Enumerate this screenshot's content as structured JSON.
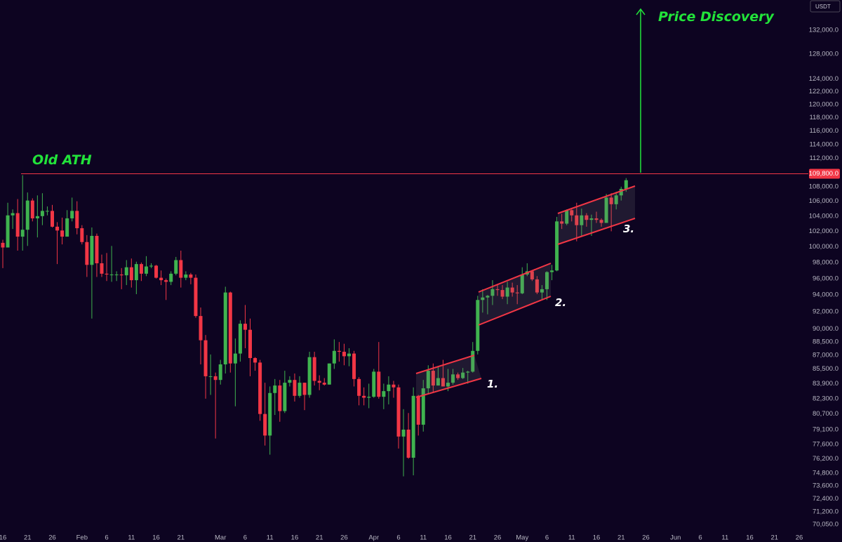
{
  "chart_data": {
    "type": "candlestick",
    "currency": "USDT",
    "annotations": {
      "old_ath": "Old ATH",
      "price_discovery": "Price Discovery",
      "channels": [
        "1.",
        "2.",
        "3."
      ]
    },
    "level": {
      "value": 109800,
      "label": "109,800.0"
    },
    "log": true,
    "grid": false,
    "up_color": "#3fb34f",
    "down_color": "#f23645",
    "ylim": [
      69480,
      137200
    ],
    "yticks": [
      {
        "value": 132000,
        "label": "132,000.0"
      },
      {
        "value": 128000,
        "label": "128,000.0"
      },
      {
        "value": 124000,
        "label": "124,000.0"
      },
      {
        "value": 122000,
        "label": "122,000.0"
      },
      {
        "value": 120000,
        "label": "120,000.0"
      },
      {
        "value": 118000,
        "label": "118,000.0"
      },
      {
        "value": 116000,
        "label": "116,000.0"
      },
      {
        "value": 114000,
        "label": "114,000.0"
      },
      {
        "value": 112000,
        "label": "112,000.0"
      },
      {
        "value": 108000,
        "label": "108,000.0"
      },
      {
        "value": 106000,
        "label": "106,000.0"
      },
      {
        "value": 104000,
        "label": "104,000.0"
      },
      {
        "value": 102000,
        "label": "102,000.0"
      },
      {
        "value": 100000,
        "label": "100,000.0"
      },
      {
        "value": 98000,
        "label": "98,000.0"
      },
      {
        "value": 96000,
        "label": "96,000.0"
      },
      {
        "value": 94000,
        "label": "94,000.0"
      },
      {
        "value": 92000,
        "label": "92,000.0"
      },
      {
        "value": 90000,
        "label": "90,000.0"
      },
      {
        "value": 88500,
        "label": "88,500.0"
      },
      {
        "value": 87000,
        "label": "87,000.0"
      },
      {
        "value": 85500,
        "label": "85,500.0"
      },
      {
        "value": 83900,
        "label": "83,900.0"
      },
      {
        "value": 82300,
        "label": "82,300.0"
      },
      {
        "value": 80700,
        "label": "80,700.0"
      },
      {
        "value": 79100,
        "label": "79,100.0"
      },
      {
        "value": 77600,
        "label": "77,600.0"
      },
      {
        "value": 76200,
        "label": "76,200.0"
      },
      {
        "value": 74800,
        "label": "74,800.0"
      },
      {
        "value": 73600,
        "label": "73,600.0"
      },
      {
        "value": 72400,
        "label": "72,400.0"
      },
      {
        "value": 71200,
        "label": "71,200.0"
      },
      {
        "value": 70050,
        "label": "70,050.0"
      }
    ],
    "categories": [
      "16",
      null,
      null,
      null,
      null,
      "21",
      null,
      null,
      null,
      null,
      "26",
      null,
      null,
      null,
      null,
      null,
      "Feb",
      null,
      null,
      null,
      null,
      "6",
      null,
      null,
      null,
      null,
      "11",
      null,
      null,
      null,
      null,
      "16",
      null,
      null,
      null,
      null,
      "21",
      null,
      null,
      null,
      null,
      null,
      null,
      null,
      "Mar",
      null,
      null,
      null,
      null,
      "6",
      null,
      null,
      null,
      null,
      "11",
      null,
      null,
      null,
      null,
      "16",
      null,
      null,
      null,
      null,
      "21",
      null,
      null,
      null,
      null,
      "26",
      null,
      null,
      null,
      null,
      null,
      "Apr",
      null,
      null,
      null,
      null,
      "6",
      null,
      null,
      null,
      null,
      "11",
      null,
      null,
      null,
      null,
      "16",
      null,
      null,
      null,
      null,
      "21",
      null,
      null,
      null,
      null,
      "26",
      null,
      null,
      null,
      null,
      "May",
      null,
      null,
      null,
      null,
      "6",
      null,
      null,
      null,
      null,
      "11",
      null,
      null,
      null,
      null,
      "16",
      null,
      null,
      null,
      null,
      "21",
      null,
      null,
      null,
      null,
      "26",
      null,
      null,
      null,
      null,
      null,
      "Jun",
      null,
      null,
      null,
      null,
      "6",
      null,
      null,
      null,
      null,
      "11",
      null,
      null,
      null,
      null,
      "16",
      null,
      null,
      null,
      null,
      "21",
      null,
      null,
      null,
      null,
      "26"
    ],
    "open": [
      100500,
      99900,
      104100,
      104400,
      101300,
      102200,
      106100,
      103700,
      104000,
      104700,
      104700,
      102600,
      102100,
      101300,
      103700,
      104700,
      102400,
      100600,
      97700,
      101400,
      97900,
      96600,
      96500,
      96500,
      96500,
      96400,
      97400,
      95800,
      97800,
      96600,
      97500,
      97600,
      96100,
      95800,
      95600,
      96600,
      98300,
      96100,
      96500,
      96100,
      91500,
      88700,
      84700,
      84700,
      84300,
      86000,
      94300,
      86100,
      87200,
      90600,
      89900,
      86700,
      86200,
      80700,
      78500,
      82900,
      83700,
      81000,
      84000,
      84300,
      82600,
      84000,
      82700,
      86800,
      84200,
      84000,
      83800,
      86100,
      87500,
      87400,
      86900,
      87200,
      84400,
      82600,
      82400,
      82500,
      85200,
      82500,
      83100,
      83800,
      83500,
      78400,
      79100,
      76300,
      82600,
      79600,
      83400,
      85300,
      83700,
      84500,
      83600,
      84000,
      84900,
      84500,
      85100,
      85200,
      87500,
      93400,
      93700,
      93900,
      94700,
      94600,
      93800,
      94900,
      94300,
      94200,
      96500,
      96900,
      95900,
      94300,
      94700,
      96800,
      97000,
      103300,
      103000,
      104800,
      104100,
      102800,
      104100,
      103500,
      103700,
      103500,
      103100,
      106500,
      105600,
      106800,
      107700,
      null,
      null,
      null,
      null,
      null,
      null,
      null,
      null,
      null,
      null,
      null,
      null,
      null,
      null,
      null,
      null,
      null,
      null,
      null,
      null,
      null,
      null,
      null,
      null,
      null,
      null,
      null,
      null,
      null,
      null,
      null,
      null,
      null,
      null,
      null
    ],
    "high": [
      100900,
      105800,
      104900,
      106300,
      109600,
      107200,
      106400,
      106800,
      107100,
      105300,
      105500,
      103200,
      103800,
      104800,
      106500,
      106000,
      102800,
      101500,
      102500,
      101700,
      99000,
      99200,
      100100,
      96900,
      97300,
      98300,
      98500,
      98100,
      98000,
      98800,
      97900,
      97700,
      97000,
      96000,
      96900,
      98700,
      99500,
      96900,
      96700,
      96500,
      92500,
      89300,
      87100,
      85100,
      86500,
      95000,
      94400,
      88900,
      91000,
      92800,
      91200,
      86800,
      86500,
      84000,
      83600,
      84400,
      84300,
      85300,
      84700,
      85000,
      84700,
      84000,
      87400,
      87400,
      84800,
      84500,
      86100,
      88800,
      88500,
      88300,
      87800,
      87500,
      84600,
      83500,
      83900,
      85500,
      88500,
      83900,
      84700,
      84200,
      83800,
      81200,
      80800,
      83500,
      82700,
      84300,
      85900,
      86100,
      85800,
      86500,
      85500,
      85500,
      85100,
      85600,
      85300,
      88500,
      93900,
      94700,
      94000,
      95800,
      95300,
      95200,
      95600,
      95500,
      95200,
      97400,
      97900,
      96900,
      96300,
      95200,
      96900,
      97700,
      103900,
      104300,
      104900,
      104900,
      105800,
      105000,
      104400,
      104200,
      104600,
      103700,
      107000,
      107100,
      107300,
      108000,
      109200,
      null,
      null,
      null,
      null,
      null,
      null,
      null,
      null,
      null,
      null,
      null,
      null,
      null,
      null,
      null,
      null,
      null,
      null,
      null,
      null,
      null,
      null,
      null,
      null,
      null,
      null,
      null,
      null,
      null,
      null,
      null,
      null,
      null,
      null,
      null
    ],
    "low": [
      97300,
      99900,
      102300,
      99500,
      99500,
      100100,
      103300,
      101200,
      102800,
      104100,
      102500,
      97800,
      100300,
      101300,
      103300,
      101600,
      100300,
      96200,
      91200,
      96200,
      96200,
      95700,
      95600,
      95700,
      94700,
      95200,
      94900,
      94100,
      95700,
      96300,
      97300,
      96000,
      95200,
      93400,
      95200,
      96400,
      94900,
      95800,
      95300,
      91300,
      86000,
      82300,
      82700,
      78200,
      83800,
      85000,
      85100,
      81500,
      86300,
      87800,
      84700,
      85300,
      80000,
      77500,
      76600,
      80600,
      79900,
      80800,
      83600,
      82000,
      82400,
      81100,
      82400,
      83700,
      83200,
      83700,
      83800,
      85500,
      86300,
      85900,
      85800,
      83600,
      81600,
      81600,
      81300,
      82400,
      82300,
      81200,
      81700,
      82400,
      77200,
      74500,
      76200,
      74600,
      78500,
      78900,
      82800,
      83000,
      83700,
      83600,
      83100,
      83800,
      84300,
      84400,
      83900,
      85100,
      87100,
      91900,
      91700,
      92800,
      93900,
      93500,
      92900,
      93800,
      92900,
      94100,
      96300,
      95700,
      94100,
      93500,
      93400,
      95800,
      96900,
      102300,
      102800,
      103300,
      100700,
      101400,
      102600,
      101400,
      103100,
      102600,
      103100,
      102000,
      104900,
      106100,
      107300,
      null,
      null,
      null,
      null,
      null,
      null,
      null,
      null,
      null,
      null,
      null,
      null,
      null,
      null,
      null,
      null,
      null,
      null,
      null,
      null,
      null,
      null,
      null,
      null,
      null,
      null,
      null,
      null,
      null,
      null,
      null,
      null,
      null,
      null,
      null
    ],
    "close": [
      99900,
      104100,
      104400,
      101300,
      102200,
      106100,
      103700,
      104000,
      104700,
      104700,
      102600,
      102100,
      101300,
      103700,
      104700,
      102400,
      100600,
      97700,
      101400,
      97900,
      96600,
      96500,
      96500,
      96500,
      96400,
      97400,
      95800,
      97800,
      96600,
      97500,
      97600,
      96100,
      95800,
      95600,
      96600,
      98300,
      96100,
      96500,
      96100,
      91500,
      88700,
      84700,
      84700,
      84300,
      86000,
      94300,
      86100,
      87200,
      90600,
      89900,
      86700,
      86200,
      80700,
      78500,
      82900,
      83700,
      81000,
      84000,
      84300,
      82600,
      84000,
      82700,
      86800,
      84200,
      84000,
      83800,
      86100,
      87500,
      87400,
      86900,
      87200,
      84400,
      82600,
      82400,
      82500,
      85200,
      82500,
      83100,
      83800,
      83500,
      78400,
      79100,
      76300,
      82600,
      79600,
      83400,
      85300,
      83700,
      84500,
      83600,
      84000,
      84900,
      84500,
      85100,
      85200,
      87500,
      93400,
      93700,
      93900,
      94700,
      94600,
      93800,
      94900,
      94300,
      94200,
      96500,
      96900,
      95900,
      94300,
      94700,
      96800,
      97000,
      103300,
      103000,
      104800,
      104100,
      102800,
      104100,
      103500,
      103700,
      103500,
      103100,
      106500,
      105600,
      106800,
      107700,
      108900,
      null,
      null,
      null,
      null,
      null,
      null,
      null,
      null,
      null,
      null,
      null,
      null,
      null,
      null,
      null,
      null,
      null,
      null,
      null,
      null,
      null,
      null,
      null,
      null,
      null,
      null,
      null,
      null,
      null,
      null,
      null,
      null,
      null,
      null,
      null
    ]
  }
}
